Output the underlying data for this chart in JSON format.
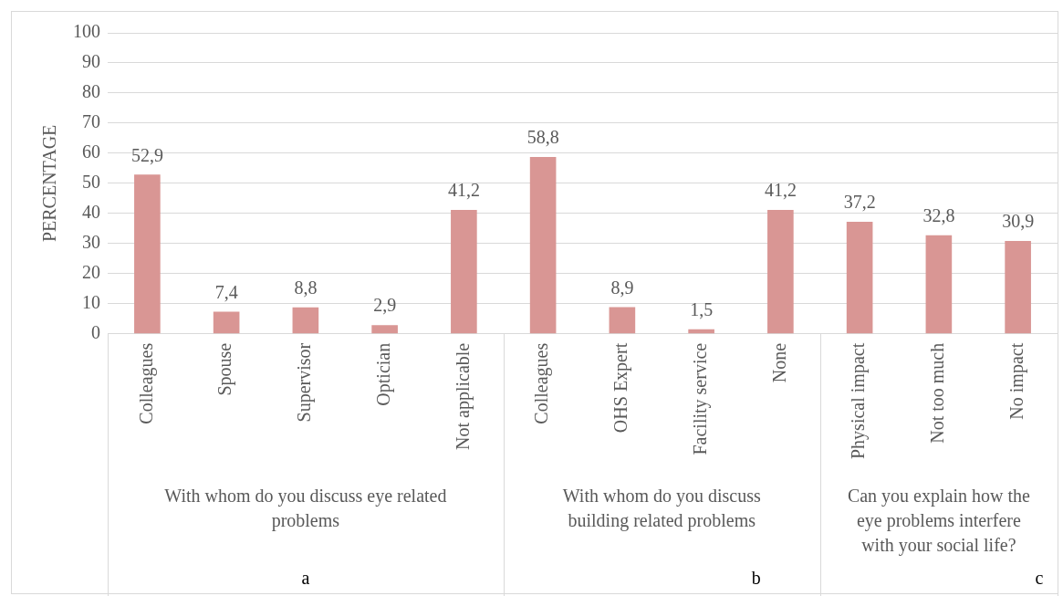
{
  "chart_data": {
    "type": "bar",
    "ylabel": "PERCENTAGE",
    "categories": [
      "Colleagues",
      "Spouse",
      "Supervisor",
      "Optician",
      "Not applicable",
      "Colleagues",
      "OHS Expert",
      "Facility service",
      "None",
      "Physical impact",
      "Not too much",
      "No impact"
    ],
    "series": [
      {
        "color": "#d99694",
        "values": [
          52.9,
          7.4,
          8.8,
          2.9,
          41.2,
          58.8,
          8.9,
          1.5,
          41.2,
          37.2,
          32.8,
          30.9
        ],
        "value_labels": [
          "52,9",
          "7,4",
          "8,8",
          "2,9",
          "41,2",
          "58,8",
          "8,9",
          "1,5",
          "41,2",
          "37,2",
          "32,8",
          "30,9"
        ]
      }
    ],
    "ylim": [
      0,
      100
    ],
    "yticks": [
      0,
      10,
      20,
      30,
      40,
      50,
      60,
      70,
      80,
      90,
      100
    ],
    "grid": "y",
    "legend": false,
    "annotations": [
      "With whom do you discuss eye related problems",
      "With whom do you discuss building related problems",
      "Can you explain how the eye problems interfere with your social life?",
      "a",
      "b",
      "c"
    ]
  }
}
